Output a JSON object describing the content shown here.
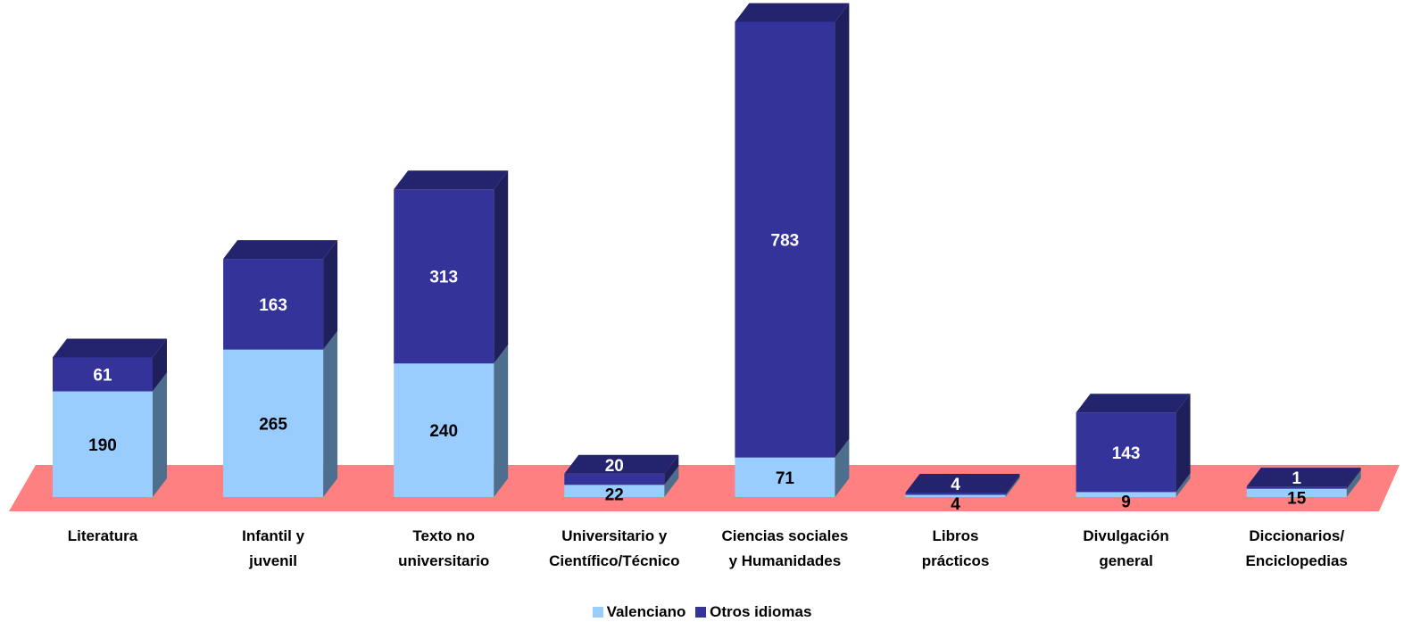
{
  "chart_data": {
    "type": "bar",
    "stacked": true,
    "three_d": true,
    "categories": [
      [
        "Literatura"
      ],
      [
        "Infantil y",
        "juvenil"
      ],
      [
        "Texto no",
        "universitario"
      ],
      [
        "Universitario y",
        "Científico/Técnico"
      ],
      [
        "Ciencias sociales",
        "y Humanidades"
      ],
      [
        "Libros",
        "prácticos"
      ],
      [
        "Divulgación",
        "general"
      ],
      [
        "Diccionarios/",
        "Enciclopedias"
      ]
    ],
    "series": [
      {
        "name": "Valenciano",
        "values": [
          190,
          265,
          240,
          22,
          71,
          4,
          9,
          15
        ],
        "color": "#99CCFF"
      },
      {
        "name": "Otros idiomas",
        "values": [
          61,
          163,
          313,
          20,
          783,
          4,
          143,
          1
        ],
        "color": "#333399"
      }
    ],
    "ylim": [
      0,
      854
    ],
    "legend_position": "bottom",
    "floor_color": "#FF8080",
    "grid": false
  },
  "legend": {
    "items": [
      {
        "label": "Valenciano",
        "color": "#99CCFF"
      },
      {
        "label": "Otros idiomas",
        "color": "#333399"
      }
    ]
  }
}
